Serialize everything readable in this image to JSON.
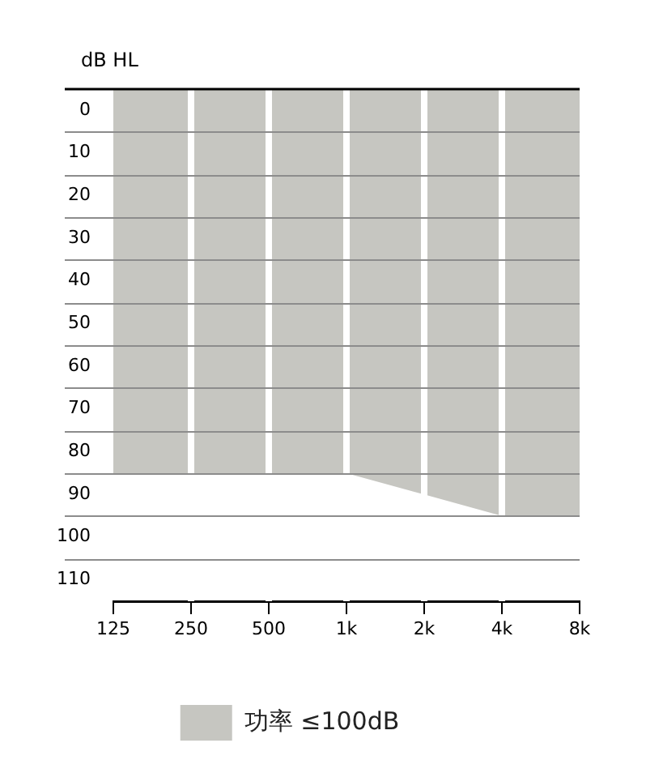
{
  "chart_data": {
    "type": "area",
    "ylabel": "dB HL",
    "x": [
      125,
      250,
      500,
      1000,
      2000,
      4000,
      8000
    ],
    "series": [
      {
        "name": "功率 ≤100dB",
        "color": "#c6c6c1",
        "values": [
          90,
          90,
          90,
          90,
          95,
          100,
          100
        ]
      }
    ],
    "log": "x",
    "xlim": [
      125,
      8000
    ],
    "xticks": [
      125,
      250,
      500,
      {
        "value": 1000,
        "label": "1k"
      },
      {
        "value": 2000,
        "label": "2k"
      },
      {
        "value": 4000,
        "label": "4k"
      },
      {
        "value": 8000,
        "label": "8k"
      }
    ],
    "ylim": [
      120,
      0
    ],
    "yticks": [
      0,
      10,
      20,
      30,
      40,
      50,
      60,
      70,
      80,
      90,
      100,
      110
    ],
    "grid": true,
    "legend": "bottom"
  }
}
